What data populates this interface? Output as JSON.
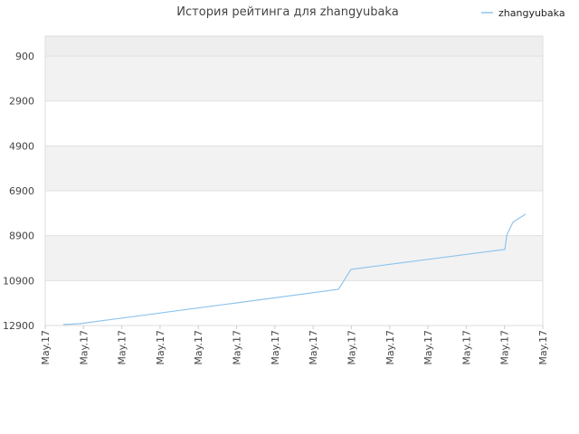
{
  "chart_data": {
    "type": "line",
    "title": "История рейтинга для zhangyubaka",
    "x": [
      0.47,
      0.9,
      7.66,
      7.99,
      12.01,
      12.06,
      12.22,
      12.55
    ],
    "series": [
      {
        "name": "zhangyubaka",
        "color": "#8ec4ec",
        "values": [
          12860,
          12820,
          11290,
          10400,
          9510,
          8870,
          8300,
          7940
        ]
      }
    ],
    "xlim": [
      0,
      13
    ],
    "xticks": [
      {
        "value": 0,
        "label": "May.17"
      },
      {
        "value": 1,
        "label": "May.17"
      },
      {
        "value": 2,
        "label": "May.17"
      },
      {
        "value": 3,
        "label": "May.17"
      },
      {
        "value": 4,
        "label": "May.17"
      },
      {
        "value": 5,
        "label": "May.17"
      },
      {
        "value": 6,
        "label": "May.17"
      },
      {
        "value": 7,
        "label": "May.17"
      },
      {
        "value": 8,
        "label": "May.17"
      },
      {
        "value": 9,
        "label": "May.17"
      },
      {
        "value": 10,
        "label": "May.17"
      },
      {
        "value": 11,
        "label": "May.17"
      },
      {
        "value": 12,
        "label": "May.17"
      },
      {
        "value": 13,
        "label": "May.17"
      }
    ],
    "ylim": [
      12900,
      13
    ],
    "yticks": [
      900,
      2900,
      4900,
      6900,
      8900,
      10900,
      12900
    ],
    "grid": true,
    "legend": "top-right"
  }
}
